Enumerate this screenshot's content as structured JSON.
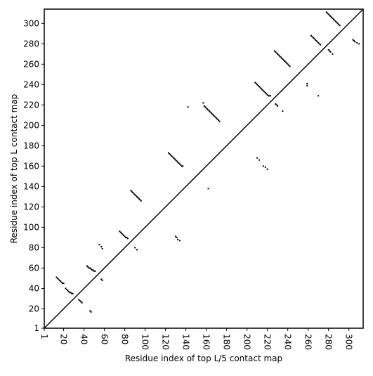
{
  "chart_data": {
    "type": "scatter",
    "xlabel": "Residue index of top L/5 contact map",
    "ylabel": "Residue index of top L contact map",
    "xlim": [
      1,
      314
    ],
    "ylim": [
      1,
      314
    ],
    "xticks": [
      1,
      20,
      40,
      60,
      80,
      100,
      120,
      140,
      160,
      180,
      200,
      220,
      240,
      260,
      280,
      300
    ],
    "yticks": [
      1,
      20,
      40,
      60,
      80,
      100,
      120,
      140,
      160,
      180,
      200,
      220,
      240,
      260,
      280,
      300
    ],
    "color": "#000000",
    "x": [
      13,
      14,
      15,
      16,
      17,
      18,
      19,
      20,
      22,
      23,
      24,
      25,
      26,
      27,
      28,
      29,
      35,
      36,
      37,
      38,
      46,
      47,
      43,
      44,
      45,
      46,
      47,
      48,
      49,
      50,
      51,
      55,
      57,
      58,
      57,
      58,
      75,
      76,
      77,
      78,
      79,
      80,
      81,
      82,
      83,
      86,
      87,
      88,
      89,
      90,
      91,
      92,
      93,
      94,
      95,
      96,
      90,
      92,
      123,
      124,
      125,
      126,
      127,
      128,
      129,
      130,
      131,
      132,
      133,
      134,
      135,
      136,
      137,
      130,
      131,
      132,
      134,
      142,
      157,
      158,
      159,
      160,
      161,
      162,
      163,
      164,
      165,
      166,
      167,
      168,
      169,
      170,
      171,
      172,
      173,
      162,
      208,
      209,
      210,
      211,
      212,
      213,
      214,
      215,
      216,
      217,
      218,
      219,
      220,
      221,
      222,
      223,
      210,
      212,
      216,
      218,
      220,
      227,
      228,
      229,
      230,
      231,
      232,
      233,
      234,
      235,
      236,
      237,
      238,
      239,
      240,
      241,
      242,
      228,
      229,
      230,
      235,
      259,
      259,
      263,
      264,
      265,
      266,
      267,
      268,
      269,
      270,
      271,
      272,
      270,
      278,
      279,
      280,
      281,
      282,
      283,
      284,
      285,
      286,
      287,
      288,
      289,
      290,
      291,
      280,
      281,
      282,
      284,
      304,
      305,
      306,
      308,
      310
    ],
    "y": [
      51,
      50,
      49,
      48,
      47,
      46,
      45,
      45,
      40,
      39,
      38,
      37,
      36,
      36,
      35,
      35,
      29,
      28,
      27,
      26,
      18,
      17,
      62,
      61,
      60,
      60,
      59,
      58,
      58,
      57,
      57,
      83,
      81,
      79,
      49,
      48,
      96,
      95,
      94,
      93,
      92,
      91,
      90,
      90,
      89,
      136,
      135,
      134,
      133,
      132,
      131,
      130,
      129,
      128,
      127,
      126,
      80,
      78,
      173,
      172,
      171,
      170,
      169,
      168,
      167,
      166,
      165,
      164,
      163,
      162,
      161,
      160,
      160,
      91,
      90,
      88,
      87,
      218,
      222,
      219,
      218,
      217,
      216,
      215,
      214,
      213,
      212,
      211,
      210,
      209,
      208,
      207,
      206,
      205,
      204,
      138,
      242,
      241,
      240,
      239,
      238,
      237,
      236,
      235,
      234,
      233,
      232,
      231,
      230,
      229,
      229,
      229,
      168,
      166,
      160,
      159,
      157,
      273,
      272,
      271,
      270,
      269,
      268,
      267,
      266,
      265,
      264,
      263,
      262,
      261,
      260,
      259,
      258,
      221,
      220,
      219,
      214,
      241,
      239,
      288,
      287,
      286,
      285,
      284,
      283,
      282,
      281,
      280,
      279,
      229,
      311,
      310,
      309,
      308,
      307,
      306,
      305,
      304,
      303,
      302,
      301,
      300,
      299,
      298,
      274,
      273,
      272,
      270,
      284,
      283,
      282,
      281,
      280
    ]
  }
}
